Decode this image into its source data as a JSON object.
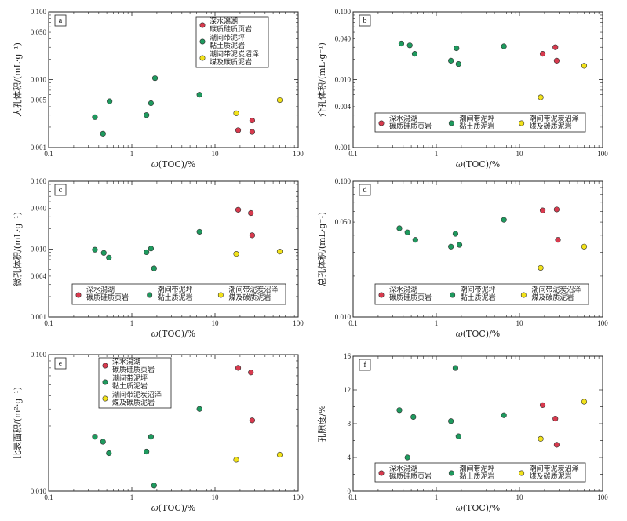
{
  "colors": {
    "series1": "#d83a4e",
    "series2": "#1e9a5e",
    "series3": "#f2e21a",
    "axis": "#222222"
  },
  "chart_data": [
    {
      "type": "scatter",
      "panel_label": "a",
      "xlabel_parts": [
        "ω",
        "(TOC)/%"
      ],
      "ylabel": "大孔体积/(mL·g⁻¹)",
      "xscale": "log",
      "yscale": "log",
      "xlim": [
        0.1,
        100
      ],
      "ylim": [
        0.001,
        0.1
      ],
      "xticks": [
        "0.1",
        "1",
        "10",
        "100"
      ],
      "yticks": [
        {
          "v": 0.001,
          "label": "0.001"
        },
        {
          "v": 0.005,
          "label": "0.005"
        },
        {
          "v": 0.01,
          "label": "0.010"
        },
        {
          "v": 0.05,
          "label": "0.050"
        },
        {
          "v": 0.1,
          "label": "0.100"
        }
      ],
      "legend": {
        "position": "top-right",
        "entries": [
          [
            "深水潟湖",
            "碳质硅质页岩"
          ],
          [
            "潮间带泥坪",
            "黏土质泥岩"
          ],
          [
            "潮间带泥炭沼泽",
            "煤及碳质泥岩"
          ]
        ]
      },
      "series": [
        {
          "x": [
            19,
            28,
            28
          ],
          "y": [
            0.0018,
            0.0025,
            0.0017
          ]
        },
        {
          "x": [
            0.36,
            0.45,
            0.54,
            1.5,
            1.7,
            1.9,
            6.5
          ],
          "y": [
            0.0028,
            0.0016,
            0.0048,
            0.003,
            0.0045,
            0.0105,
            0.006
          ]
        },
        {
          "x": [
            18,
            60
          ],
          "y": [
            0.0032,
            0.005
          ]
        }
      ]
    },
    {
      "type": "scatter",
      "panel_label": "b",
      "xlabel_parts": [
        "ω",
        "(TOC)/%"
      ],
      "ylabel": "介孔体积/(mL·g⁻¹)",
      "xscale": "log",
      "yscale": "log",
      "xlim": [
        0.1,
        100
      ],
      "ylim": [
        0.001,
        0.1
      ],
      "xticks": [
        "0.1",
        "1",
        "10",
        "100"
      ],
      "yticks": [
        {
          "v": 0.001,
          "label": "0.001"
        },
        {
          "v": 0.004,
          "label": "0.004"
        },
        {
          "v": 0.01,
          "label": "0.010"
        },
        {
          "v": 0.04,
          "label": "0.040"
        },
        {
          "v": 0.1,
          "label": "0.100"
        }
      ],
      "legend": {
        "position": "bottom-center",
        "entries": [
          [
            "深水潟湖",
            "碳质硅质页岩"
          ],
          [
            "潮间带泥坪",
            "黏土质泥岩"
          ],
          [
            "潮间带泥炭沼泽",
            "煤及碳质泥岩"
          ]
        ]
      },
      "series": [
        {
          "x": [
            19,
            27,
            28
          ],
          "y": [
            0.024,
            0.03,
            0.019
          ]
        },
        {
          "x": [
            0.38,
            0.48,
            0.55,
            1.5,
            1.75,
            1.85,
            6.5
          ],
          "y": [
            0.034,
            0.032,
            0.024,
            0.019,
            0.029,
            0.017,
            0.031
          ]
        },
        {
          "x": [
            18,
            60
          ],
          "y": [
            0.0055,
            0.016
          ]
        }
      ]
    },
    {
      "type": "scatter",
      "panel_label": "c",
      "xlabel_parts": [
        "ω",
        "(TOC)/%"
      ],
      "ylabel": "微孔体积/(mL·g⁻¹)",
      "xscale": "log",
      "yscale": "log",
      "xlim": [
        0.1,
        100
      ],
      "ylim": [
        0.001,
        0.1
      ],
      "xticks": [
        "0.1",
        "1",
        "10",
        "100"
      ],
      "yticks": [
        {
          "v": 0.001,
          "label": "0.001"
        },
        {
          "v": 0.004,
          "label": "0.004"
        },
        {
          "v": 0.01,
          "label": "0.010"
        },
        {
          "v": 0.04,
          "label": "0.040"
        },
        {
          "v": 0.1,
          "label": "0.100"
        }
      ],
      "legend": {
        "position": "bottom-center",
        "entries": [
          [
            "深水潟湖",
            "碳质硅质页岩"
          ],
          [
            "潮间带泥坪",
            "黏土质泥岩"
          ],
          [
            "潮间带泥炭沼泽",
            "煤及碳质泥岩"
          ]
        ]
      },
      "series": [
        {
          "x": [
            19,
            27,
            28
          ],
          "y": [
            0.038,
            0.034,
            0.016
          ]
        },
        {
          "x": [
            0.36,
            0.46,
            0.53,
            1.5,
            1.7,
            1.85,
            6.5
          ],
          "y": [
            0.0098,
            0.0088,
            0.0075,
            0.009,
            0.0102,
            0.0052,
            0.018
          ]
        },
        {
          "x": [
            18,
            60
          ],
          "y": [
            0.0085,
            0.0092
          ]
        }
      ]
    },
    {
      "type": "scatter",
      "panel_label": "d",
      "xlabel_parts": [
        "ω",
        "(TOC)/%"
      ],
      "ylabel": "总孔体积/(mL·g⁻¹)",
      "xscale": "log",
      "yscale": "log",
      "xlim": [
        0.1,
        100
      ],
      "ylim": [
        0.01,
        0.1
      ],
      "xticks": [
        "0.1",
        "1",
        "10",
        "100"
      ],
      "yticks": [
        {
          "v": 0.01,
          "label": "0.010"
        },
        {
          "v": 0.05,
          "label": "0.050"
        },
        {
          "v": 0.1,
          "label": "0.100"
        }
      ],
      "legend": {
        "position": "bottom-center",
        "entries": [
          [
            "深水潟湖",
            "碳质硅质页岩"
          ],
          [
            "潮间带泥坪",
            "黏土质泥岩"
          ],
          [
            "潮间带泥炭沼泽",
            "煤及碳质泥岩"
          ]
        ]
      },
      "series": [
        {
          "x": [
            19,
            28,
            29
          ],
          "y": [
            0.061,
            0.062,
            0.037
          ]
        },
        {
          "x": [
            0.36,
            0.45,
            0.56,
            1.5,
            1.7,
            1.9,
            6.5
          ],
          "y": [
            0.045,
            0.042,
            0.037,
            0.033,
            0.041,
            0.034,
            0.052
          ]
        },
        {
          "x": [
            18,
            60
          ],
          "y": [
            0.023,
            0.033
          ]
        }
      ]
    },
    {
      "type": "scatter",
      "panel_label": "e",
      "xlabel_parts": [
        "ω",
        "(TOC)/%"
      ],
      "ylabel": "比表面积/(m²·g⁻¹)",
      "xscale": "log",
      "yscale": "log",
      "xlim": [
        0.1,
        100
      ],
      "ylim": [
        0.01,
        0.1
      ],
      "xticks": [
        "0.1",
        "1",
        "10",
        "100"
      ],
      "yticks": [
        {
          "v": 0.01,
          "label": "0.010"
        },
        {
          "v": 0.1,
          "label": "0.100"
        }
      ],
      "legend": {
        "position": "top-center",
        "entries": [
          [
            "深水潟湖",
            "碳质硅质页岩"
          ],
          [
            "潮间带泥坪",
            "黏土质泥岩"
          ],
          [
            "潮间带泥炭沼泽",
            "煤及碳质泥岩"
          ]
        ]
      },
      "series": [
        {
          "x": [
            19,
            27,
            28
          ],
          "y": [
            0.08,
            0.074,
            0.033
          ]
        },
        {
          "x": [
            0.36,
            0.45,
            0.53,
            1.5,
            1.7,
            1.85,
            6.5
          ],
          "y": [
            0.025,
            0.023,
            0.019,
            0.0195,
            0.025,
            0.011,
            0.04
          ]
        },
        {
          "x": [
            18,
            60
          ],
          "y": [
            0.017,
            0.0185
          ]
        }
      ]
    },
    {
      "type": "scatter",
      "panel_label": "f",
      "xlabel_parts": [
        "ω",
        "(TOC)/%"
      ],
      "ylabel": "孔隙度/%",
      "xscale": "log",
      "yscale": "linear",
      "xlim": [
        0.1,
        100
      ],
      "ylim": [
        0,
        16
      ],
      "xticks": [
        "0.1",
        "1",
        "10",
        "100"
      ],
      "yticks": [
        {
          "v": 0,
          "label": "0"
        },
        {
          "v": 4,
          "label": "4"
        },
        {
          "v": 8,
          "label": "8"
        },
        {
          "v": 12,
          "label": "12"
        },
        {
          "v": 16,
          "label": "16"
        }
      ],
      "legend": {
        "position": "bottom-center",
        "entries": [
          [
            "深水潟湖",
            "碳质硅质页岩"
          ],
          [
            "潮间带泥坪",
            "黏土质泥岩"
          ],
          [
            "潮间带泥炭沼泽",
            "煤及碳质泥岩"
          ]
        ]
      },
      "series": [
        {
          "x": [
            19,
            27,
            28
          ],
          "y": [
            10.2,
            8.6,
            5.5
          ]
        },
        {
          "x": [
            0.36,
            0.45,
            0.53,
            1.5,
            1.7,
            1.85,
            6.5
          ],
          "y": [
            9.6,
            4.0,
            8.8,
            8.3,
            14.6,
            6.5,
            9.0
          ]
        },
        {
          "x": [
            18,
            60
          ],
          "y": [
            6.2,
            10.6
          ]
        }
      ]
    }
  ]
}
